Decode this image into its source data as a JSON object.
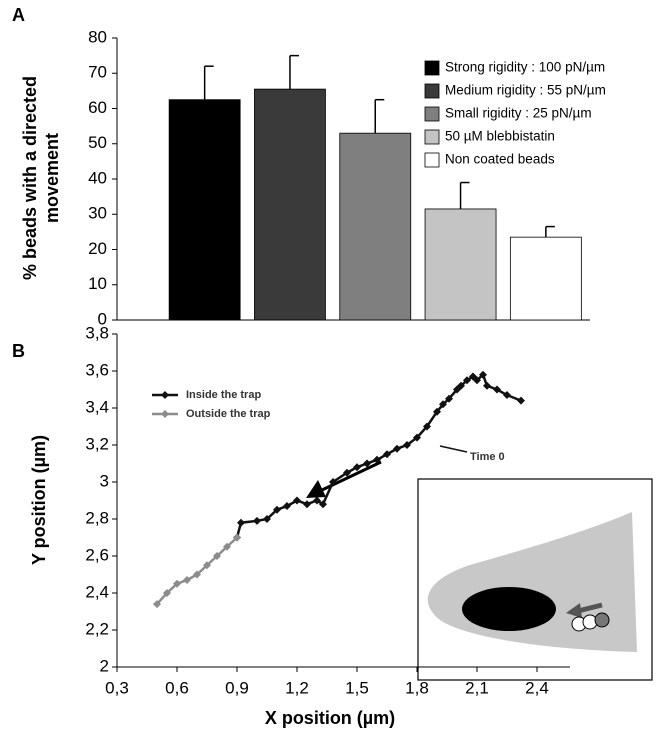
{
  "chart_data": [
    {
      "type": "bar",
      "panel": "A",
      "y_label": [
        "% beads with a directed",
        "movement"
      ],
      "categories": [
        "Strong rigidity : 100 pN/µm",
        "Medium rigidity : 55 pN/µm",
        "Small rigidity : 25 pN/µm",
        "50 µM blebbistatin",
        "Non coated beads"
      ],
      "values": [
        62.5,
        65.5,
        53,
        31.5,
        23.5
      ],
      "errors": [
        9.5,
        9.5,
        9.5,
        7.5,
        3
      ],
      "colors": [
        "#000000",
        "#3a3a3a",
        "#7f7f7f",
        "#c4c4c4",
        "#ffffff"
      ],
      "ylim": [
        0,
        80
      ],
      "yticks": [
        0,
        10,
        20,
        30,
        40,
        50,
        60,
        70,
        80
      ]
    },
    {
      "type": "line",
      "panel": "B",
      "x_label": "X position (µm)",
      "y_label": "Y position (µm)",
      "annotation": "Time 0",
      "series": [
        {
          "name": "Inside the trap",
          "color": "#111111",
          "x": [
            0.9,
            0.92,
            1.0,
            1.05,
            1.1,
            1.15,
            1.2,
            1.25,
            1.3,
            1.33,
            1.38,
            1.45,
            1.5,
            1.55,
            1.6,
            1.65,
            1.7,
            1.75,
            1.8,
            1.85,
            1.9,
            1.93,
            1.96,
            2.0,
            2.02,
            2.05,
            2.08,
            2.1,
            2.13,
            2.15,
            2.2,
            2.25,
            2.32
          ],
          "values": [
            2.7,
            2.78,
            2.79,
            2.8,
            2.85,
            2.87,
            2.9,
            2.88,
            2.9,
            2.88,
            3.0,
            3.05,
            3.08,
            3.1,
            3.12,
            3.15,
            3.18,
            3.2,
            3.24,
            3.3,
            3.38,
            3.42,
            3.45,
            3.5,
            3.52,
            3.55,
            3.57,
            3.55,
            3.58,
            3.52,
            3.5,
            3.47,
            3.44
          ]
        },
        {
          "name": "Outside the trap",
          "color": "#8c8c8c",
          "x": [
            0.5,
            0.55,
            0.6,
            0.65,
            0.7,
            0.75,
            0.8,
            0.85,
            0.9
          ],
          "values": [
            2.34,
            2.4,
            2.45,
            2.47,
            2.5,
            2.55,
            2.6,
            2.65,
            2.7
          ]
        }
      ],
      "xlim": [
        0.3,
        2.55
      ],
      "xticks": [
        {
          "value": 0.3,
          "label": "0,3"
        },
        {
          "value": 0.6,
          "label": "0,6"
        },
        {
          "value": 0.9,
          "label": "0,9"
        },
        {
          "value": 1.2,
          "label": "1,2"
        },
        {
          "value": 1.5,
          "label": "1,5"
        },
        {
          "value": 1.8,
          "label": "1,8"
        },
        {
          "value": 2.1,
          "label": "2,1"
        },
        {
          "value": 2.4,
          "label": "2,4"
        }
      ],
      "ylim": [
        2,
        3.8
      ],
      "yticks": [
        2,
        {
          "value": 2.2,
          "label": "2,2"
        },
        {
          "value": 2.4,
          "label": "2,4"
        },
        {
          "value": 2.6,
          "label": "2,6"
        },
        {
          "value": 2.8,
          "label": "2,8"
        },
        3,
        {
          "value": 3.2,
          "label": "3,2"
        },
        {
          "value": 3.4,
          "label": "3,4"
        },
        {
          "value": 3.6,
          "label": "3,6"
        },
        {
          "value": 3.8,
          "label": "3,8"
        }
      ]
    }
  ]
}
